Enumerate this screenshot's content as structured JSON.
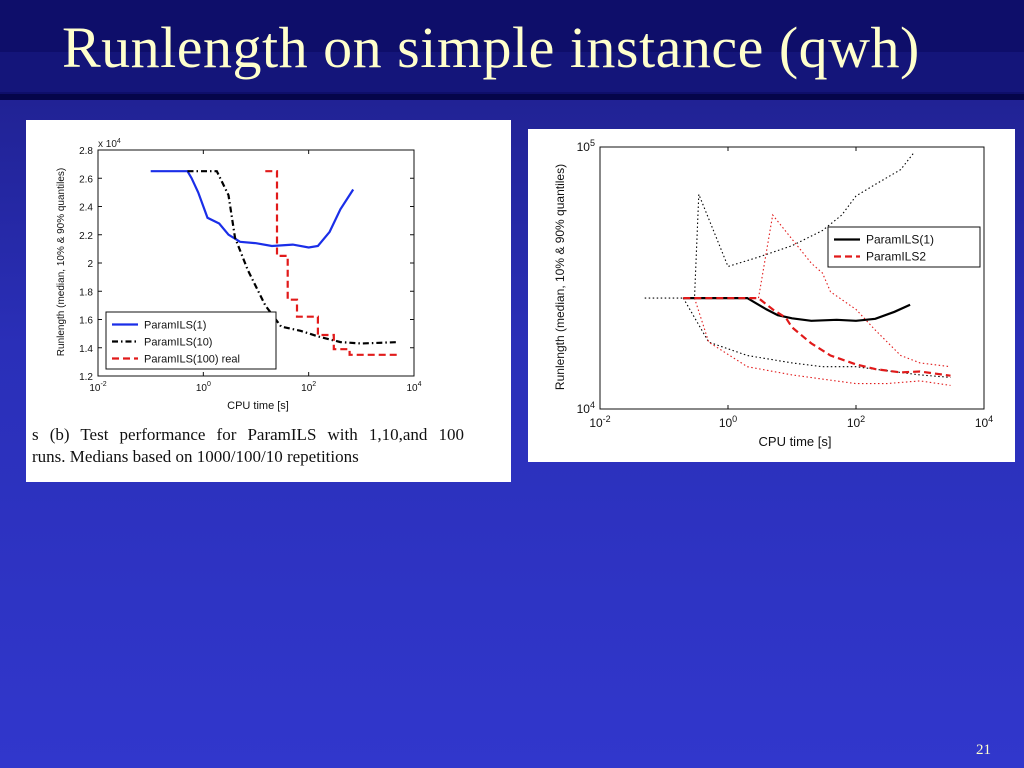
{
  "slide": {
    "title": "Runlength on simple instance (qwh)",
    "page_number": "21",
    "caption_line1": "s (b) Test performance for ParamILS with 1,10,and 100",
    "caption_line2": "runs. Medians based on 1000/100/10 repetitions"
  },
  "chart_data": [
    {
      "type": "line",
      "xlabel": "CPU time [s]",
      "ylabel": "Runlength (median, 10% & 90% quantiles)",
      "x_scale": "log",
      "xlim": [
        0.01,
        10000
      ],
      "ylim": [
        1.2,
        2.8
      ],
      "y_multiplier": "x 10^4",
      "x_ticks": [
        {
          "v": 0.01,
          "base": "10",
          "exp": "-2"
        },
        {
          "v": 1,
          "base": "10",
          "exp": "0"
        },
        {
          "v": 100,
          "base": "10",
          "exp": "2"
        },
        {
          "v": 10000,
          "base": "10",
          "exp": "4"
        }
      ],
      "y_ticks": [
        {
          "v": 1.2,
          "t": "1.2"
        },
        {
          "v": 1.4,
          "t": "1.4"
        },
        {
          "v": 1.6,
          "t": "1.6"
        },
        {
          "v": 1.8,
          "t": "1.8"
        },
        {
          "v": 2.0,
          "t": "2"
        },
        {
          "v": 2.2,
          "t": "2.2"
        },
        {
          "v": 2.4,
          "t": "2.4"
        },
        {
          "v": 2.6,
          "t": "2.6"
        },
        {
          "v": 2.8,
          "t": "2.8"
        }
      ],
      "legend_position": "bottom-left",
      "grid": false,
      "series": [
        {
          "name": "ParamILS(1)",
          "color": "#1a2ee8",
          "style": "solid",
          "x": [
            0.1,
            0.5,
            0.6,
            0.8,
            1.2,
            2,
            3,
            5,
            10,
            20,
            50,
            100,
            150,
            250,
            400,
            700
          ],
          "y": [
            2.65,
            2.65,
            2.6,
            2.5,
            2.32,
            2.28,
            2.2,
            2.15,
            2.14,
            2.12,
            2.13,
            2.11,
            2.12,
            2.22,
            2.38,
            2.52
          ]
        },
        {
          "name": "ParamILS(10)",
          "color": "#000000",
          "style": "dashdot",
          "x": [
            0.5,
            1.8,
            3,
            4,
            7,
            15,
            30,
            70,
            150,
            400,
            1000,
            5000
          ],
          "y": [
            2.65,
            2.65,
            2.48,
            2.18,
            1.95,
            1.7,
            1.55,
            1.52,
            1.48,
            1.44,
            1.43,
            1.44
          ]
        },
        {
          "name": "ParamILS(100) real",
          "color": "#e11a1a",
          "style": "dashed",
          "x": [
            15,
            25,
            25,
            40,
            40,
            60,
            60,
            150,
            150,
            300,
            300,
            600,
            600,
            5000
          ],
          "y": [
            2.65,
            2.65,
            2.05,
            2.05,
            1.74,
            1.74,
            1.62,
            1.62,
            1.49,
            1.49,
            1.39,
            1.39,
            1.35,
            1.35
          ]
        }
      ]
    },
    {
      "type": "line",
      "xlabel": "CPU time [s]",
      "ylabel": "Runlength (median, 10% & 90% quantiles)",
      "x_scale": "log",
      "y_scale": "log",
      "xlim": [
        0.01,
        10000
      ],
      "ylim": [
        10000,
        100000
      ],
      "x_ticks": [
        {
          "v": 0.01,
          "base": "10",
          "exp": "-2"
        },
        {
          "v": 1,
          "base": "10",
          "exp": "0"
        },
        {
          "v": 100,
          "base": "10",
          "exp": "2"
        },
        {
          "v": 10000,
          "base": "10",
          "exp": "4"
        }
      ],
      "y_ticks": [
        {
          "v": 10000,
          "base": "10",
          "exp": "4"
        },
        {
          "v": 100000,
          "base": "10",
          "exp": "5"
        }
      ],
      "legend_position": "top-right",
      "grid": false,
      "series": [
        {
          "name": "ParamILS(1)",
          "color": "#000000",
          "style": "solid",
          "x": [
            0.2,
            2,
            4,
            6,
            10,
            20,
            50,
            100,
            200,
            400,
            700
          ],
          "y": [
            26500,
            26500,
            24000,
            22800,
            22200,
            21700,
            21900,
            21700,
            22100,
            23500,
            25000
          ]
        },
        {
          "name": "ParamILS2",
          "color": "#e11a1a",
          "style": "dashed",
          "x": [
            0.2,
            3,
            5,
            8,
            10,
            20,
            40,
            100,
            200,
            500,
            1000,
            3000
          ],
          "y": [
            26500,
            26500,
            24000,
            22300,
            20500,
            17800,
            16000,
            14800,
            14200,
            13800,
            13900,
            13400
          ]
        }
      ],
      "quantile_bands": [
        {
          "color": "#000000",
          "style": "dotted",
          "x": [
            0.05,
            0.3,
            0.35,
            1,
            3,
            10,
            30,
            60,
            100,
            200,
            500,
            800
          ],
          "y": [
            26500,
            26500,
            66000,
            35000,
            38000,
            42000,
            48000,
            55000,
            65000,
            72000,
            82000,
            95000
          ]
        },
        {
          "color": "#000000",
          "style": "dotted",
          "x": [
            0.2,
            0.5,
            2,
            10,
            30,
            100,
            300,
            1000,
            3000
          ],
          "y": [
            26500,
            18000,
            16000,
            15000,
            14500,
            14500,
            14000,
            13500,
            13200
          ]
        },
        {
          "color": "#e11a1a",
          "style": "dotted",
          "x": [
            0.3,
            3,
            4,
            5,
            20,
            30,
            40,
            100,
            200,
            500,
            1000,
            3000
          ],
          "y": [
            26500,
            26500,
            40000,
            55000,
            36000,
            33000,
            28000,
            24000,
            20000,
            16000,
            15000,
            14500
          ]
        },
        {
          "color": "#e11a1a",
          "style": "dotted",
          "x": [
            0.3,
            0.5,
            2,
            10,
            30,
            100,
            300,
            1000,
            3000
          ],
          "y": [
            26500,
            18000,
            14500,
            13500,
            13000,
            12500,
            12500,
            12800,
            12300
          ]
        }
      ]
    }
  ]
}
